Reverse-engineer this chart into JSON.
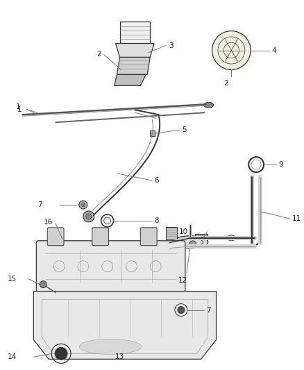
{
  "background_color": "#ffffff",
  "fig_width": 4.38,
  "fig_height": 5.33,
  "dpi": 100,
  "line_color": "#333333",
  "text_color": "#222222",
  "font_size": 7.5
}
